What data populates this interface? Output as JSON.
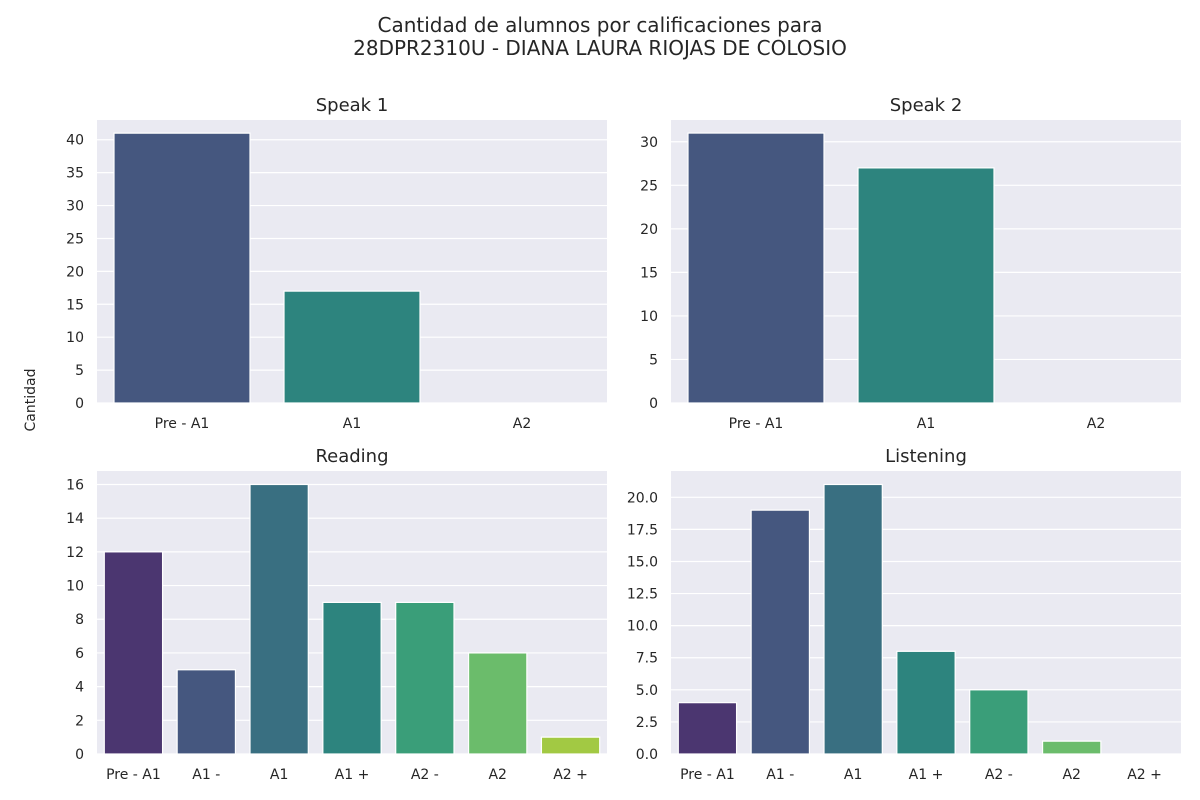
{
  "figure": {
    "title_line1": "Cantidad de alumnos por calificaciones para",
    "title_line2": "28DPR2310U - DIANA LAURA RIOJAS DE COLOSIO",
    "ylabel": "Cantidad",
    "background_color": "#eaeaf2",
    "grid_color": "#ffffff"
  },
  "chart_data": [
    {
      "type": "bar",
      "title": "Speak 1",
      "categories": [
        "Pre - A1",
        "A1",
        "A2"
      ],
      "values": [
        41,
        17,
        0
      ],
      "colors": [
        "#45577f",
        "#2d847e",
        "#9fcd3f"
      ],
      "yticks": [
        "0",
        "5",
        "10",
        "15",
        "20",
        "25",
        "30",
        "35",
        "40"
      ],
      "ylim": [
        0,
        43
      ],
      "grid": true
    },
    {
      "type": "bar",
      "title": "Speak 2",
      "categories": [
        "Pre - A1",
        "A1",
        "A2"
      ],
      "values": [
        31,
        27,
        0
      ],
      "colors": [
        "#45577f",
        "#2d847e",
        "#9fcd3f"
      ],
      "yticks": [
        "0",
        "5",
        "10",
        "15",
        "20",
        "25",
        "30"
      ],
      "ylim": [
        0,
        32.5
      ],
      "grid": true
    },
    {
      "type": "bar",
      "title": "Reading",
      "categories": [
        "Pre - A1",
        "A1 -",
        "A1",
        "A1 +",
        "A2 -",
        "A2",
        "A2 +"
      ],
      "values": [
        12,
        5,
        16,
        9,
        9,
        6,
        1
      ],
      "colors": [
        "#4b3670",
        "#45577f",
        "#396f81",
        "#2d847e",
        "#3a9e79",
        "#6bbc6b",
        "#a2c943"
      ],
      "yticks": [
        "0",
        "2",
        "4",
        "6",
        "8",
        "10",
        "12",
        "14",
        "16"
      ],
      "ylim": [
        0,
        16.8
      ],
      "grid": true
    },
    {
      "type": "bar",
      "title": "Listening",
      "categories": [
        "Pre - A1",
        "A1 -",
        "A1",
        "A1 +",
        "A2 -",
        "A2",
        "A2 +"
      ],
      "values": [
        4,
        19,
        21,
        8,
        5,
        1,
        0
      ],
      "colors": [
        "#4b3670",
        "#45577f",
        "#396f81",
        "#2d847e",
        "#3a9e79",
        "#6bbc6b",
        "#a2c943"
      ],
      "yticks": [
        "0.0",
        "2.5",
        "5.0",
        "7.5",
        "10.0",
        "12.5",
        "15.0",
        "17.5",
        "20.0"
      ],
      "ylim": [
        0,
        22.05
      ],
      "grid": true
    }
  ]
}
